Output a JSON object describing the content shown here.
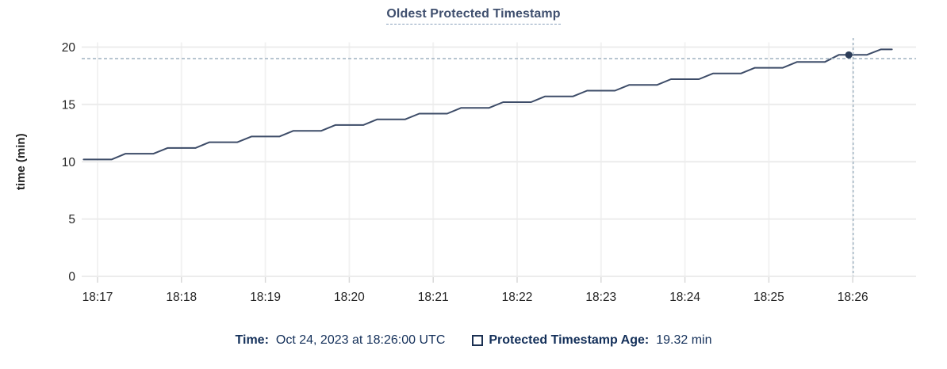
{
  "chart_data": {
    "type": "line",
    "title": "Oldest Protected Timestamp",
    "xlabel": "",
    "ylabel": "time (min)",
    "ylim": [
      0,
      20
    ],
    "y_ticks": [
      0,
      5,
      10,
      15,
      20
    ],
    "x_ticks": [
      "18:17",
      "18:18",
      "18:19",
      "18:20",
      "18:21",
      "18:22",
      "18:23",
      "18:24",
      "18:25",
      "18:26"
    ],
    "grid": "both",
    "legend_position": "bottom",
    "series": [
      {
        "name": "Protected Timestamp Age",
        "unit": "min",
        "points": [
          [
            "18:16:50",
            10.2
          ],
          [
            "18:17:00",
            10.2
          ],
          [
            "18:17:10",
            10.2
          ],
          [
            "18:17:20",
            10.7
          ],
          [
            "18:17:30",
            10.7
          ],
          [
            "18:17:40",
            10.7
          ],
          [
            "18:17:50",
            11.2
          ],
          [
            "18:18:00",
            11.2
          ],
          [
            "18:18:10",
            11.2
          ],
          [
            "18:18:20",
            11.7
          ],
          [
            "18:18:30",
            11.7
          ],
          [
            "18:18:40",
            11.7
          ],
          [
            "18:18:50",
            12.2
          ],
          [
            "18:19:00",
            12.2
          ],
          [
            "18:19:10",
            12.2
          ],
          [
            "18:19:20",
            12.7
          ],
          [
            "18:19:30",
            12.7
          ],
          [
            "18:19:40",
            12.7
          ],
          [
            "18:19:50",
            13.2
          ],
          [
            "18:20:00",
            13.2
          ],
          [
            "18:20:10",
            13.2
          ],
          [
            "18:20:20",
            13.7
          ],
          [
            "18:20:30",
            13.7
          ],
          [
            "18:20:40",
            13.7
          ],
          [
            "18:20:50",
            14.2
          ],
          [
            "18:21:00",
            14.2
          ],
          [
            "18:21:10",
            14.2
          ],
          [
            "18:21:20",
            14.7
          ],
          [
            "18:21:30",
            14.7
          ],
          [
            "18:21:40",
            14.7
          ],
          [
            "18:21:50",
            15.2
          ],
          [
            "18:22:00",
            15.2
          ],
          [
            "18:22:10",
            15.2
          ],
          [
            "18:22:20",
            15.7
          ],
          [
            "18:22:30",
            15.7
          ],
          [
            "18:22:40",
            15.7
          ],
          [
            "18:22:50",
            16.2
          ],
          [
            "18:23:00",
            16.2
          ],
          [
            "18:23:10",
            16.2
          ],
          [
            "18:23:20",
            16.7
          ],
          [
            "18:23:30",
            16.7
          ],
          [
            "18:23:40",
            16.7
          ],
          [
            "18:23:50",
            17.2
          ],
          [
            "18:24:00",
            17.2
          ],
          [
            "18:24:10",
            17.2
          ],
          [
            "18:24:20",
            17.7
          ],
          [
            "18:24:30",
            17.7
          ],
          [
            "18:24:40",
            17.7
          ],
          [
            "18:24:50",
            18.2
          ],
          [
            "18:25:00",
            18.2
          ],
          [
            "18:25:10",
            18.2
          ],
          [
            "18:25:20",
            18.7
          ],
          [
            "18:25:30",
            18.7
          ],
          [
            "18:25:40",
            18.7
          ],
          [
            "18:25:50",
            19.32
          ],
          [
            "18:26:00",
            19.32
          ],
          [
            "18:26:10",
            19.32
          ],
          [
            "18:26:20",
            19.8
          ],
          [
            "18:26:28",
            19.8
          ]
        ]
      }
    ],
    "hover": {
      "time": "18:26:00",
      "value": 19.32,
      "guide_value": 19.0
    }
  },
  "legend": {
    "time_label": "Time:",
    "time_value": "Oct 24, 2023 at 18:26:00 UTC",
    "series_label": "Protected Timestamp Age:",
    "series_value": "19.32 min",
    "series_swatch": "checkbox-outline-square"
  },
  "colors": {
    "legend_text": "#14305a",
    "title_text": "#3f4f6e",
    "title_underline": "#8aa2bc",
    "series_line": "#3d4c68",
    "hover_point": "#2b3c58",
    "crosshair": "#9fb2c1",
    "grid_h": "#ececec",
    "grid_v": "#f2f2f2",
    "axis_tick": "#d9d9d9",
    "tick_text": "#242424"
  }
}
